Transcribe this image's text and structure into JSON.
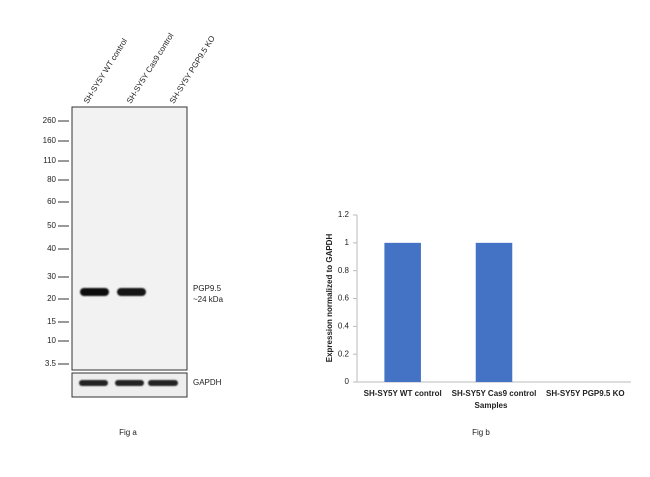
{
  "blot": {
    "lanes": [
      "SH-SY5Y WT control",
      "SH-SY5Y Cas9 control",
      "SH-SY5Y PGP9.5 KO"
    ],
    "markers": [
      "260",
      "160",
      "110",
      "80",
      "60",
      "50",
      "40",
      "30",
      "20",
      "15",
      "10",
      "3.5"
    ],
    "band_label": "PGP9.5",
    "band_size": "~24 kDa",
    "control_label": "GAPDH",
    "caption": "Fig a"
  },
  "chart_data": {
    "type": "bar",
    "categories": [
      "SH-SY5Y WT control",
      "SH-SY5Y Cas9 control",
      "SH-SY5Y PGP9.5 KO"
    ],
    "values": [
      1,
      1,
      0
    ],
    "color": "#4472c4",
    "ylim": [
      0,
      1.2
    ],
    "yticks": [
      0,
      0.2,
      0.4,
      0.6,
      0.8,
      1,
      1.2
    ],
    "ylabel": "Expression normalized to GAPDH",
    "xlabel": "Samples",
    "caption": "Fig b"
  }
}
